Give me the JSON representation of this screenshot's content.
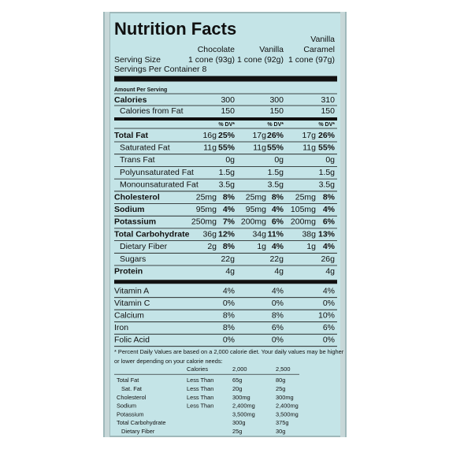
{
  "title": "Nutrition Facts",
  "products": [
    {
      "lines": [
        "Chocolate"
      ]
    },
    {
      "lines": [
        "Vanilla"
      ]
    },
    {
      "lines": [
        "Vanilla",
        "Caramel"
      ]
    }
  ],
  "serving_size": {
    "label": "Serving Size",
    "values": [
      "1 cone (93g)",
      "1 cone (92g)",
      "1 cone (97g)"
    ]
  },
  "servings_per_container": "Servings Per Container 8",
  "amount_per_serving": "Amount Per Serving",
  "calories": {
    "label": "Calories",
    "values": [
      300,
      300,
      310
    ]
  },
  "calories_from_fat": {
    "label": "Calories from Fat",
    "values": [
      150,
      150,
      150
    ]
  },
  "dv_header": "% DV*",
  "nutrients": [
    {
      "label": "Total Fat",
      "bold": true,
      "values": [
        {
          "amount": "16g",
          "dv": "25%"
        },
        {
          "amount": "17g",
          "dv": "26%"
        },
        {
          "amount": "17g",
          "dv": "26%"
        }
      ]
    },
    {
      "label": "Saturated Fat",
      "indent": true,
      "values": [
        {
          "amount": "11g",
          "dv": "55%"
        },
        {
          "amount": "11g",
          "dv": "55%"
        },
        {
          "amount": "11g",
          "dv": "55%"
        }
      ]
    },
    {
      "label": "Trans Fat",
      "indent": true,
      "values": [
        {
          "amount": "0g"
        },
        {
          "amount": "0g"
        },
        {
          "amount": "0g"
        }
      ]
    },
    {
      "label": "Polyunsaturated Fat",
      "indent": true,
      "values": [
        {
          "amount": "1.5g"
        },
        {
          "amount": "1.5g"
        },
        {
          "amount": "1.5g"
        }
      ]
    },
    {
      "label": "Monounsaturated Fat",
      "indent": true,
      "values": [
        {
          "amount": "3.5g"
        },
        {
          "amount": "3.5g"
        },
        {
          "amount": "3.5g"
        }
      ]
    },
    {
      "label": "Cholesterol",
      "bold": true,
      "values": [
        {
          "amount": "25mg",
          "dv": "8%"
        },
        {
          "amount": "25mg",
          "dv": "8%"
        },
        {
          "amount": "25mg",
          "dv": "8%"
        }
      ]
    },
    {
      "label": "Sodium",
      "bold": true,
      "values": [
        {
          "amount": "95mg",
          "dv": "4%"
        },
        {
          "amount": "95mg",
          "dv": "4%"
        },
        {
          "amount": "105mg",
          "dv": "4%"
        }
      ]
    },
    {
      "label": "Potassium",
      "bold": true,
      "values": [
        {
          "amount": "250mg",
          "dv": "7%"
        },
        {
          "amount": "200mg",
          "dv": "6%"
        },
        {
          "amount": "200mg",
          "dv": "6%"
        }
      ]
    },
    {
      "label": "Total Carbohydrate",
      "bold": true,
      "values": [
        {
          "amount": "36g",
          "dv": "12%"
        },
        {
          "amount": "34g",
          "dv": "11%"
        },
        {
          "amount": "38g",
          "dv": "13%"
        }
      ]
    },
    {
      "label": "Dietary Fiber",
      "indent": true,
      "values": [
        {
          "amount": "2g",
          "dv": "8%"
        },
        {
          "amount": "1g",
          "dv": "4%"
        },
        {
          "amount": "1g",
          "dv": "4%"
        }
      ]
    },
    {
      "label": "Sugars",
      "indent": true,
      "values": [
        {
          "amount": "22g"
        },
        {
          "amount": "22g"
        },
        {
          "amount": "26g"
        }
      ]
    },
    {
      "label": "Protein",
      "bold": true,
      "values": [
        {
          "amount": "4g"
        },
        {
          "amount": "4g"
        },
        {
          "amount": "4g"
        }
      ]
    }
  ],
  "vitamins": [
    {
      "label": "Vitamin A",
      "values": [
        "4%",
        "4%",
        "4%"
      ]
    },
    {
      "label": "Vitamin C",
      "values": [
        "0%",
        "0%",
        "0%"
      ]
    },
    {
      "label": "Calcium",
      "values": [
        "8%",
        "8%",
        "10%"
      ]
    },
    {
      "label": "Iron",
      "values": [
        "8%",
        "6%",
        "6%"
      ]
    },
    {
      "label": "Folic Acid",
      "values": [
        "0%",
        "0%",
        "0%"
      ]
    }
  ],
  "footnote": [
    "* Percent Daily Values are based on a 2,000 calorie diet. Your daily values may be higher",
    "or lower depending on your calorie needs:"
  ],
  "daily_values": {
    "header": [
      "Calories",
      "2,000",
      "2,500"
    ],
    "rows": [
      {
        "label": "Total Fat",
        "qualifier": "Less Than",
        "values": [
          "65g",
          "80g"
        ]
      },
      {
        "label": "Sat. Fat",
        "indent": true,
        "qualifier": "Less Than",
        "values": [
          "20g",
          "25g"
        ]
      },
      {
        "label": "Cholesterol",
        "qualifier": "Less Than",
        "values": [
          "300mg",
          "300mg"
        ]
      },
      {
        "label": "Sodium",
        "qualifier": "Less Than",
        "values": [
          "2,400mg",
          "2,400mg"
        ]
      },
      {
        "label": "Potassium",
        "values": [
          "3,500mg",
          "3,500mg"
        ]
      },
      {
        "label": "Total Carbohydrate",
        "values": [
          "300g",
          "375g"
        ]
      },
      {
        "label": "Dietary Fiber",
        "indent": true,
        "values": [
          "25g",
          "30g"
        ]
      }
    ]
  }
}
